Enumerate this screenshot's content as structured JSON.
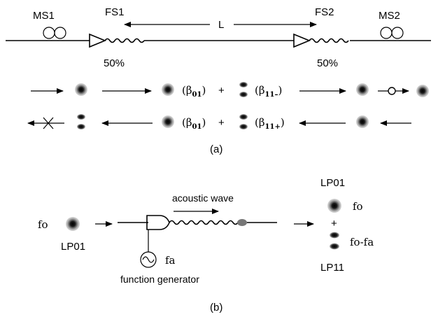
{
  "diagram": {
    "panel_a": {
      "mirror_left_label": "MS1",
      "mirror_right_label": "MS2",
      "grating_left_label": "FS1",
      "grating_right_label": "FS2",
      "length_label": "L",
      "coupler_left_ratio": "50%",
      "coupler_right_ratio": "50%",
      "row1": {
        "mode_a": "(β",
        "mode_a_sub": "01",
        "plus": "+",
        "mode_b": "(β",
        "mode_b_sub": "11–",
        "close": ")"
      },
      "row2": {
        "mode_a": "(β",
        "mode_a_sub": "01",
        "plus": "+",
        "mode_b": "(β",
        "mode_b_sub": "11+",
        "close": ")"
      },
      "panel_label": "(a)"
    },
    "panel_b": {
      "input_freq": "fo",
      "input_mode": "LP01",
      "acoustic_label": "acoustic wave",
      "generator_freq": "fa",
      "generator_label": "function generator",
      "out_mode_top": "LP01",
      "out_freq_top": "fo",
      "plus": "+",
      "out_freq_bottom": "fo-fa",
      "out_mode_bottom": "LP11",
      "panel_label": "(b)"
    }
  }
}
